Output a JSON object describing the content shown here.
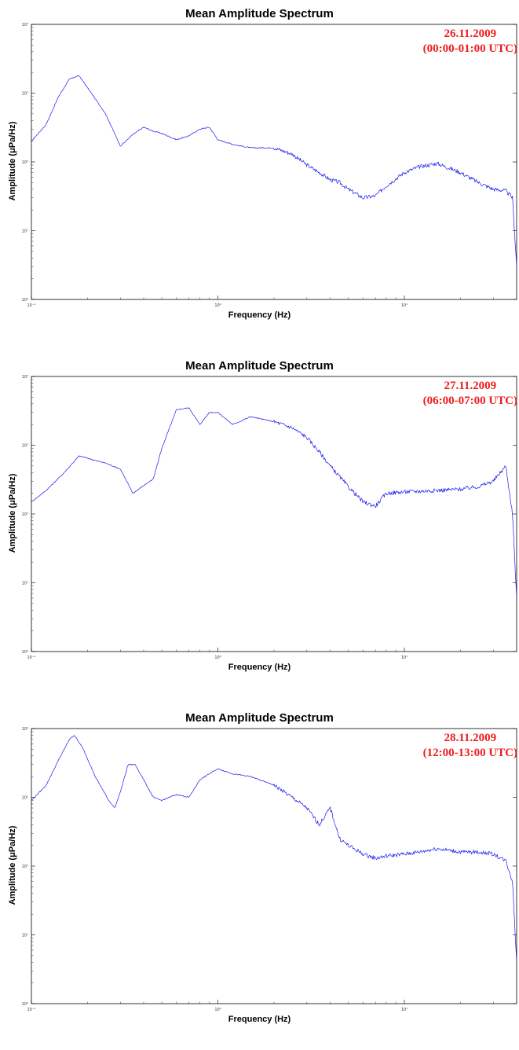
{
  "chart_data": [
    {
      "type": "line",
      "title": "Mean Amplitude Spectrum",
      "xlabel": "Frequency (Hz)",
      "ylabel": "Amplitude (μPa/Hz)",
      "annotation": [
        "26.11.2009",
        "(00:00-01:00 UTC)"
      ],
      "x_scale": "log",
      "y_scale": "log",
      "xlim": [
        0.1,
        40
      ],
      "ylim": [
        1,
        10000
      ],
      "x_ticks": [
        "10⁻¹",
        "10⁰",
        "10¹"
      ],
      "y_ticks": [
        "10⁰",
        "10¹",
        "10²",
        "10³",
        "10⁴"
      ],
      "grid": false,
      "series": [
        {
          "color": "#1a1aee",
          "x": [
            0.1,
            0.12,
            0.14,
            0.16,
            0.18,
            0.2,
            0.25,
            0.3,
            0.35,
            0.4,
            0.45,
            0.5,
            0.6,
            0.7,
            0.8,
            0.9,
            1.0,
            1.2,
            1.5,
            2.0,
            2.5,
            3.0,
            3.5,
            4.0,
            4.5,
            5.0,
            6.0,
            7.0,
            8.0,
            10,
            12,
            15,
            20,
            25,
            30,
            35,
            38,
            40
          ],
          "y": [
            200,
            350,
            900,
            1600,
            1800,
            1200,
            500,
            170,
            250,
            320,
            280,
            260,
            210,
            240,
            300,
            320,
            210,
            180,
            160,
            160,
            130,
            90,
            70,
            55,
            50,
            40,
            30,
            32,
            45,
            70,
            85,
            95,
            70,
            50,
            40,
            38,
            30,
            3
          ]
        }
      ]
    },
    {
      "type": "line",
      "title": "Mean Amplitude Spectrum",
      "xlabel": "Frequency (Hz)",
      "ylabel": "Amplitude (μPa/Hz)",
      "annotation": [
        "27.11.2009",
        "(06:00-07:00 UTC)"
      ],
      "x_scale": "log",
      "y_scale": "log",
      "xlim": [
        0.1,
        40
      ],
      "ylim": [
        1,
        10000
      ],
      "x_ticks": [
        "10⁻¹",
        "10⁰",
        "10¹"
      ],
      "y_ticks": [
        "10⁰",
        "10¹",
        "10²",
        "10³",
        "10⁴"
      ],
      "grid": false,
      "series": [
        {
          "color": "#1a1aee",
          "x": [
            0.1,
            0.12,
            0.15,
            0.18,
            0.2,
            0.22,
            0.25,
            0.3,
            0.35,
            0.4,
            0.45,
            0.5,
            0.6,
            0.7,
            0.8,
            0.9,
            1.0,
            1.2,
            1.5,
            2.0,
            2.5,
            3.0,
            3.5,
            4.0,
            5.0,
            6.0,
            7.0,
            8.0,
            10,
            15,
            20,
            25,
            30,
            35,
            38,
            40
          ],
          "y": [
            150,
            220,
            400,
            700,
            650,
            600,
            550,
            450,
            200,
            260,
            320,
            900,
            3300,
            3500,
            2000,
            3000,
            3000,
            2000,
            2600,
            2200,
            1800,
            1300,
            800,
            500,
            250,
            150,
            130,
            200,
            210,
            220,
            230,
            250,
            300,
            500,
            100,
            6
          ]
        }
      ]
    },
    {
      "type": "line",
      "title": "Mean Amplitude Spectrum",
      "xlabel": "Frequency (Hz)",
      "ylabel": "Amplitude (μPa/Hz)",
      "annotation": [
        "28.11.2009",
        "(12:00-13:00 UTC)"
      ],
      "x_scale": "log",
      "y_scale": "log",
      "xlim": [
        0.1,
        40
      ],
      "ylim": [
        1,
        10000
      ],
      "x_ticks": [
        "10⁻¹",
        "10⁰",
        "10¹"
      ],
      "y_ticks": [
        "10⁰",
        "10¹",
        "10²",
        "10³",
        "10⁴"
      ],
      "grid": false,
      "series": [
        {
          "color": "#1a1aee",
          "x": [
            0.1,
            0.12,
            0.14,
            0.16,
            0.17,
            0.19,
            0.22,
            0.26,
            0.28,
            0.3,
            0.33,
            0.36,
            0.4,
            0.45,
            0.5,
            0.6,
            0.7,
            0.8,
            0.9,
            1.0,
            1.2,
            1.5,
            2.0,
            2.5,
            3.0,
            3.5,
            4.0,
            4.5,
            5.0,
            6.0,
            7.0,
            8.0,
            10,
            12,
            15,
            20,
            25,
            30,
            35,
            38,
            40
          ],
          "y": [
            900,
            1500,
            3500,
            7000,
            8000,
            5000,
            2000,
            900,
            700,
            1200,
            3000,
            3000,
            1800,
            1000,
            900,
            1100,
            1000,
            1800,
            2200,
            2600,
            2200,
            2000,
            1500,
            1000,
            700,
            400,
            700,
            250,
            200,
            150,
            130,
            140,
            150,
            160,
            180,
            160,
            160,
            150,
            120,
            60,
            4
          ]
        }
      ]
    }
  ]
}
